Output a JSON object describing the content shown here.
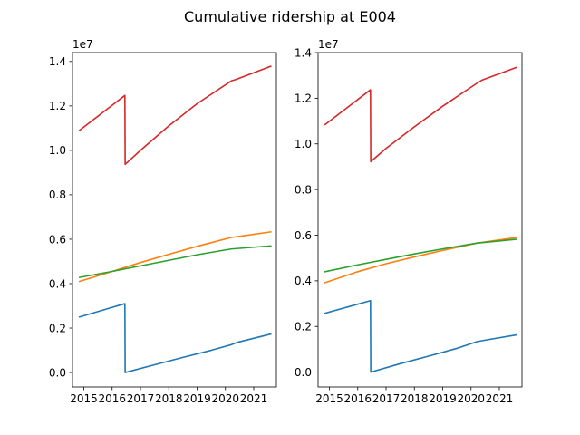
{
  "chart_data": {
    "title": "Cumulative ridership at E004",
    "type": "line",
    "subplots": [
      {
        "id": "left",
        "xlim": [
          2014.6,
          2021.8
        ],
        "ylim": [
          -0.065,
          1.44
        ],
        "y_multiplier": "1e7",
        "x_ticks": [
          2015,
          2016,
          2017,
          2018,
          2019,
          2020,
          2021
        ],
        "x_tick_labels": [
          "2015",
          "2016",
          "2017",
          "2018",
          "2019",
          "2020",
          "2021"
        ],
        "y_ticks": [
          0.0,
          0.2,
          0.4,
          0.6,
          0.8,
          1.0,
          1.2,
          1.4
        ],
        "y_tick_labels": [
          "0.0",
          "0.2",
          "0.4",
          "0.6",
          "0.8",
          "1.0",
          "1.2",
          "1.4"
        ],
        "series": [
          {
            "color": "#1f77b4",
            "x": [
              2014.85,
              2016.45,
              2016.46,
              2017.5,
              2018.5,
              2019.5,
              2020.2,
              2020.4,
              2021.6
            ],
            "y": [
              0.25,
              0.31,
              0.0,
              0.035,
              0.068,
              0.1,
              0.125,
              0.135,
              0.173
            ]
          },
          {
            "color": "#ff7f0e",
            "x": [
              2014.85,
              2016.0,
              2017.0,
              2018.0,
              2019.0,
              2020.2,
              2020.6,
              2021.6
            ],
            "y": [
              0.41,
              0.455,
              0.495,
              0.532,
              0.568,
              0.608,
              0.615,
              0.633
            ]
          },
          {
            "color": "#2ca02c",
            "x": [
              2014.85,
              2016.0,
              2017.0,
              2018.0,
              2019.0,
              2020.2,
              2021.6
            ],
            "y": [
              0.428,
              0.455,
              0.48,
              0.505,
              0.53,
              0.556,
              0.57
            ]
          },
          {
            "color": "#d62728",
            "x": [
              2014.85,
              2016.45,
              2016.46,
              2017.0,
              2018.0,
              2019.0,
              2020.2,
              2020.4,
              2021.6
            ],
            "y": [
              1.09,
              1.247,
              0.937,
              1.0,
              1.11,
              1.21,
              1.312,
              1.32,
              1.378
            ]
          }
        ]
      },
      {
        "id": "right",
        "xlim": [
          2014.6,
          2021.8
        ],
        "ylim": [
          -0.065,
          1.4
        ],
        "y_multiplier": "1e7",
        "x_ticks": [
          2015,
          2016,
          2017,
          2018,
          2019,
          2020,
          2021
        ],
        "x_tick_labels": [
          "2015",
          "2016",
          "2017",
          "2018",
          "2019",
          "2020",
          "2021"
        ],
        "y_ticks": [
          0.0,
          0.2,
          0.4,
          0.6,
          0.8,
          1.0,
          1.2,
          1.4
        ],
        "y_tick_labels": [
          "0.0",
          "0.2",
          "0.4",
          "0.6",
          "0.8",
          "1.0",
          "1.2",
          "1.4"
        ],
        "series": [
          {
            "color": "#1f77b4",
            "x": [
              2014.85,
              2016.45,
              2016.46,
              2017.5,
              2018.5,
              2019.5,
              2020.2,
              2020.4,
              2021.6
            ],
            "y": [
              0.258,
              0.313,
              0.0,
              0.037,
              0.07,
              0.104,
              0.133,
              0.138,
              0.163
            ]
          },
          {
            "color": "#ff7f0e",
            "x": [
              2014.85,
              2016.0,
              2017.0,
              2018.0,
              2019.0,
              2020.2,
              2021.6
            ],
            "y": [
              0.392,
              0.44,
              0.475,
              0.505,
              0.533,
              0.565,
              0.59
            ]
          },
          {
            "color": "#2ca02c",
            "x": [
              2014.85,
              2016.0,
              2017.0,
              2018.0,
              2019.0,
              2020.2,
              2021.6
            ],
            "y": [
              0.44,
              0.47,
              0.494,
              0.518,
              0.54,
              0.565,
              0.582
            ]
          },
          {
            "color": "#d62728",
            "x": [
              2014.85,
              2016.45,
              2016.46,
              2017.0,
              2018.0,
              2019.0,
              2020.2,
              2020.4,
              2021.6
            ],
            "y": [
              1.085,
              1.237,
              0.922,
              0.98,
              1.075,
              1.165,
              1.265,
              1.28,
              1.335
            ]
          }
        ]
      }
    ]
  }
}
